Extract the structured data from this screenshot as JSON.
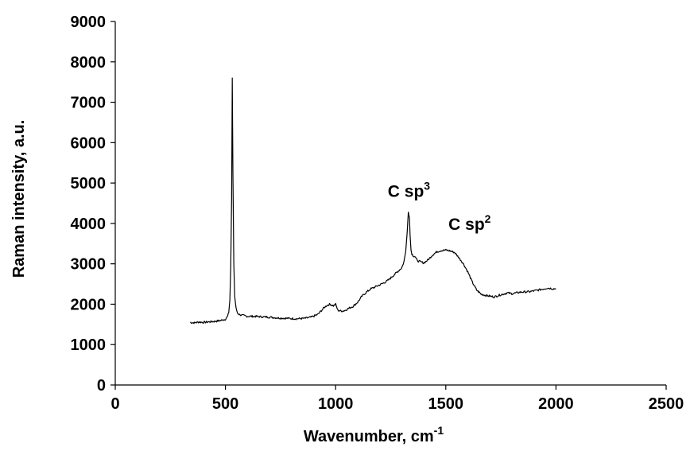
{
  "chart_data": {
    "type": "line",
    "xlabel": "Wavenumber, cm",
    "xlabel_sup": "-1",
    "ylabel": "Raman intensity, a.u.",
    "xlim": [
      0,
      2500
    ],
    "ylim": [
      0,
      9000
    ],
    "x_ticks": [
      "0",
      "500",
      "1000",
      "1500",
      "2000",
      "2500"
    ],
    "y_ticks": [
      "0",
      "1000",
      "2000",
      "3000",
      "4000",
      "5000",
      "6000",
      "7000",
      "8000",
      "9000"
    ],
    "grid": false,
    "legend": "none",
    "line_color": "#000000",
    "annotations": [
      {
        "text": "C sp",
        "sup": "3",
        "x": 1340,
        "y": 4300
      },
      {
        "text": "C sp",
        "sup": "2",
        "x": 1500,
        "y": 3330
      }
    ],
    "series": [
      {
        "x": [
          340,
          360,
          380,
          400,
          420,
          440,
          460,
          480,
          500,
          510,
          515,
          520,
          524,
          528,
          531,
          534,
          538,
          542,
          548,
          555,
          565,
          580,
          600,
          630,
          660,
          700,
          740,
          780,
          820,
          860,
          890,
          920,
          945,
          960,
          975,
          990,
          1000,
          1010,
          1025,
          1040,
          1060,
          1080,
          1100,
          1120,
          1140,
          1160,
          1180,
          1200,
          1220,
          1240,
          1260,
          1280,
          1300,
          1310,
          1318,
          1325,
          1330,
          1335,
          1338,
          1342,
          1346,
          1352,
          1360,
          1370,
          1385,
          1400,
          1420,
          1440,
          1460,
          1480,
          1500,
          1520,
          1540,
          1560,
          1580,
          1600,
          1620,
          1640,
          1660,
          1680,
          1700,
          1720,
          1740,
          1760,
          1780,
          1800,
          1840,
          1880,
          1920,
          1960,
          2000
        ],
        "y": [
          1550,
          1540,
          1560,
          1550,
          1560,
          1570,
          1580,
          1600,
          1630,
          1700,
          1800,
          2100,
          2900,
          4600,
          7600,
          5200,
          3000,
          2200,
          1900,
          1780,
          1740,
          1720,
          1700,
          1700,
          1690,
          1680,
          1660,
          1650,
          1640,
          1650,
          1680,
          1750,
          1900,
          1970,
          2000,
          1960,
          2000,
          1850,
          1830,
          1840,
          1900,
          1950,
          2050,
          2200,
          2300,
          2380,
          2430,
          2480,
          2530,
          2600,
          2700,
          2800,
          2900,
          3050,
          3300,
          3800,
          4300,
          4150,
          3700,
          3350,
          3250,
          3200,
          3180,
          3080,
          3050,
          3020,
          3100,
          3220,
          3300,
          3330,
          3340,
          3320,
          3280,
          3150,
          3000,
          2800,
          2550,
          2350,
          2250,
          2220,
          2200,
          2180,
          2220,
          2250,
          2280,
          2260,
          2300,
          2310,
          2350,
          2400,
          2380
        ]
      }
    ]
  }
}
